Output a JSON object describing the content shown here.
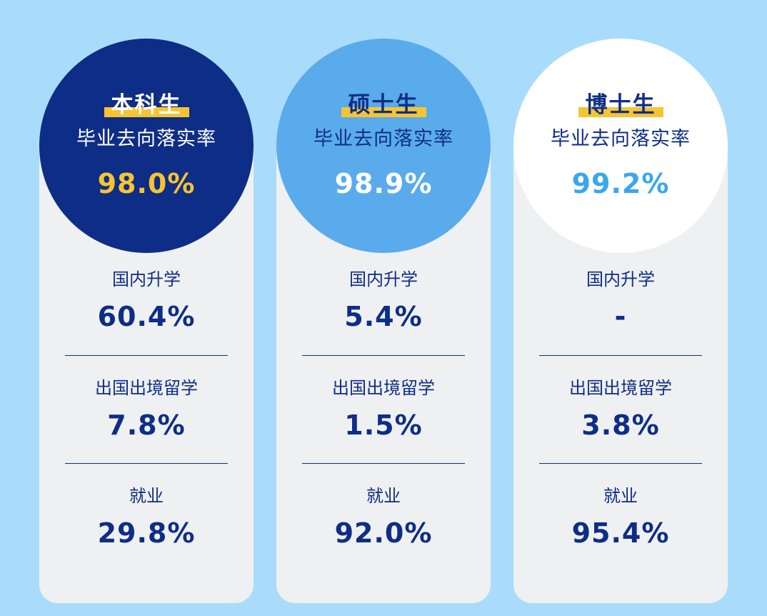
{
  "colors": {
    "background": "#a9dcfb",
    "card": "#eff0f2",
    "navy": "#0e2d86",
    "mid_blue": "#5aabec",
    "white": "#ffffff",
    "gold": "#f7c431",
    "sky": "#3aa7eb"
  },
  "cards": [
    {
      "title": "本科生",
      "subtitle": "毕业去向落实率",
      "rate": "98.0%",
      "rate_color": "#f7c431",
      "stats": [
        {
          "label": "国内升学",
          "value": "60.4%"
        },
        {
          "label": "出国出境留学",
          "value": "7.8%"
        },
        {
          "label": "就业",
          "value": "29.8%"
        }
      ]
    },
    {
      "title": "硕士生",
      "subtitle": "毕业去向落实率",
      "rate": "98.9%",
      "rate_color": "#ffffff",
      "stats": [
        {
          "label": "国内升学",
          "value": "5.4%"
        },
        {
          "label": "出国出境留学",
          "value": "1.5%"
        },
        {
          "label": "就业",
          "value": "92.0%"
        }
      ]
    },
    {
      "title": "博士生",
      "subtitle": "毕业去向落实率",
      "rate": "99.2%",
      "rate_color": "#3aa7eb",
      "stats": [
        {
          "label": "国内升学",
          "value": "-"
        },
        {
          "label": "出国出境留学",
          "value": "3.8%"
        },
        {
          "label": "就业",
          "value": "95.4%"
        }
      ]
    }
  ]
}
